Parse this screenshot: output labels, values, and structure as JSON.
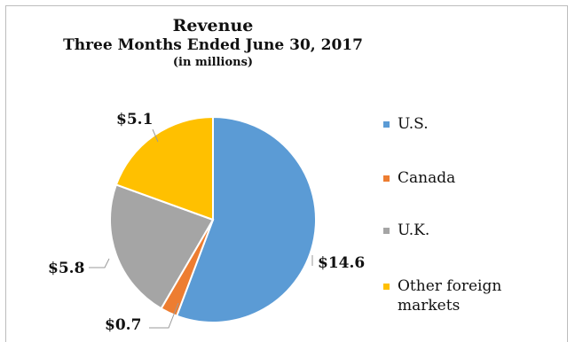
{
  "chart_data": {
    "type": "pie",
    "title": "Revenue",
    "subtitle": "Three Months Ended June 30, 2017",
    "unit_note": "(in millions)",
    "categories": [
      "U.S.",
      "Canada",
      "U.K.",
      "Other foreign markets"
    ],
    "values": [
      14.6,
      0.7,
      5.8,
      5.1
    ],
    "data_labels": [
      "$14.6",
      "$0.7",
      "$5.8",
      "$5.1"
    ],
    "colors": [
      "#5B9BD5",
      "#ED7D31",
      "#A5A5A5",
      "#FFC000"
    ],
    "legend": {
      "placement": "right",
      "entries": [
        {
          "line1": "U.S.",
          "line2": ""
        },
        {
          "line1": "Canada",
          "line2": ""
        },
        {
          "line1": "U.K.",
          "line2": ""
        },
        {
          "line1": "Other foreign",
          "line2": "markets"
        }
      ]
    }
  }
}
